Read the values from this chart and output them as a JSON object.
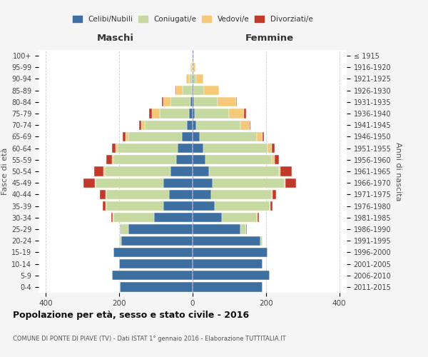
{
  "age_groups": [
    "0-4",
    "5-9",
    "10-14",
    "15-19",
    "20-24",
    "25-29",
    "30-34",
    "35-39",
    "40-44",
    "45-49",
    "50-54",
    "55-59",
    "60-64",
    "65-69",
    "70-74",
    "75-79",
    "80-84",
    "85-89",
    "90-94",
    "95-99",
    "100+"
  ],
  "birth_years": [
    "≤ 1915",
    "1916-1920",
    "1921-1925",
    "1926-1930",
    "1931-1935",
    "1936-1940",
    "1941-1945",
    "1946-1950",
    "1951-1955",
    "1956-1960",
    "1961-1965",
    "1966-1970",
    "1971-1975",
    "1976-1980",
    "1981-1985",
    "1986-1990",
    "1991-1995",
    "1996-2000",
    "2001-2005",
    "2006-2010",
    "2011-2015"
  ],
  "maschi_celibe": [
    198,
    220,
    200,
    215,
    195,
    175,
    105,
    80,
    65,
    80,
    60,
    45,
    40,
    30,
    15,
    10,
    5,
    2,
    1,
    0,
    0
  ],
  "maschi_coniugato": [
    0,
    0,
    0,
    0,
    5,
    20,
    110,
    155,
    170,
    185,
    180,
    170,
    165,
    145,
    115,
    80,
    55,
    25,
    8,
    2,
    1
  ],
  "maschi_vedovo": [
    0,
    0,
    0,
    0,
    0,
    0,
    2,
    2,
    2,
    2,
    3,
    5,
    5,
    8,
    10,
    20,
    20,
    18,
    8,
    3,
    1
  ],
  "maschi_divorziato": [
    0,
    0,
    0,
    0,
    0,
    2,
    5,
    8,
    15,
    30,
    25,
    15,
    10,
    8,
    5,
    8,
    3,
    2,
    1,
    0,
    0
  ],
  "femmine_nubile": [
    190,
    210,
    190,
    205,
    185,
    130,
    80,
    60,
    50,
    55,
    45,
    35,
    30,
    20,
    10,
    5,
    3,
    1,
    0,
    0,
    0
  ],
  "femmine_coniugata": [
    0,
    0,
    0,
    0,
    5,
    15,
    95,
    150,
    165,
    195,
    190,
    180,
    175,
    155,
    120,
    95,
    65,
    30,
    10,
    2,
    1
  ],
  "femmine_vedova": [
    0,
    0,
    0,
    0,
    0,
    0,
    2,
    2,
    3,
    3,
    5,
    8,
    10,
    15,
    25,
    40,
    50,
    40,
    20,
    5,
    2
  ],
  "femmine_divorziata": [
    0,
    0,
    0,
    0,
    0,
    2,
    3,
    5,
    10,
    28,
    30,
    12,
    8,
    5,
    3,
    5,
    2,
    1,
    0,
    0,
    0
  ],
  "color_celibe": "#3d6fa0",
  "color_coniugato": "#c5d9a0",
  "color_vedovo": "#f5c97a",
  "color_divorziato": "#c0392b",
  "title": "Popolazione per età, sesso e stato civile - 2016",
  "subtitle": "COMUNE DI PONTE DI PIAVE (TV) - Dati ISTAT 1° gennaio 2016 - Elaborazione TUTTITALIA.IT",
  "xlabel_left": "Maschi",
  "xlabel_right": "Femmine",
  "ylabel_left": "Fasce di età",
  "ylabel_right": "Anni di nascita",
  "xlim": 420,
  "bg_color": "#f5f5f5",
  "plot_bg": "#ffffff",
  "grid_color": "#cccccc"
}
